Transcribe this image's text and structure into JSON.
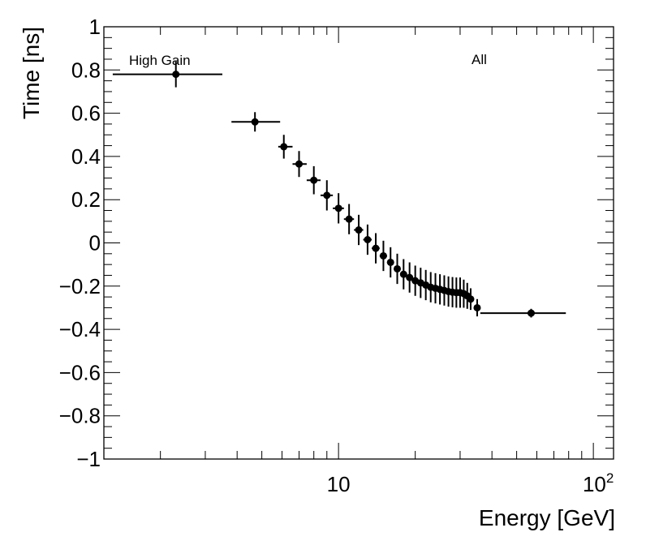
{
  "chart_data": {
    "type": "scatter",
    "xlabel": "Energy [GeV]",
    "ylabel": "Time [ns]",
    "xscale": "log",
    "xlim": [
      1.2,
      120
    ],
    "ylim": [
      -1,
      1
    ],
    "grid": false,
    "annotations": {
      "left": "High Gain",
      "right": "All"
    },
    "x_major_tick_labels": [
      {
        "value": 10,
        "label": "10"
      },
      {
        "value": 100,
        "label": "10",
        "sup": "2"
      }
    ],
    "y_tick_labels": [
      {
        "value": 1,
        "label": "1"
      },
      {
        "value": 0.8,
        "label": "0.8"
      },
      {
        "value": 0.6,
        "label": "0.6"
      },
      {
        "value": 0.4,
        "label": "0.4"
      },
      {
        "value": 0.2,
        "label": "0.2"
      },
      {
        "value": 0,
        "label": "0"
      },
      {
        "value": -0.2,
        "label": "−0.2"
      },
      {
        "value": -0.4,
        "label": "−0.4"
      },
      {
        "value": -0.6,
        "label": "−0.6"
      },
      {
        "value": -0.8,
        "label": "−0.8"
      },
      {
        "value": -1,
        "label": "−1"
      }
    ],
    "series": [
      {
        "name": "All",
        "points": [
          {
            "x": 2.3,
            "y": 0.78,
            "xlo": 1.3,
            "xhi": 3.5,
            "yerr": 0.06
          },
          {
            "x": 4.7,
            "y": 0.56,
            "xlo": 3.8,
            "xhi": 5.9,
            "yerr": 0.045
          },
          {
            "x": 6.1,
            "y": 0.445,
            "xlo": 5.8,
            "xhi": 6.6,
            "yerr": 0.055
          },
          {
            "x": 7.0,
            "y": 0.365,
            "xlo": 6.6,
            "xhi": 7.5,
            "yerr": 0.06
          },
          {
            "x": 8.0,
            "y": 0.29,
            "xlo": 7.5,
            "xhi": 8.5,
            "yerr": 0.065
          },
          {
            "x": 9.0,
            "y": 0.22,
            "xlo": 8.5,
            "xhi": 9.5,
            "yerr": 0.07
          },
          {
            "x": 10.0,
            "y": 0.16,
            "xlo": 9.5,
            "xhi": 10.5,
            "yerr": 0.07
          },
          {
            "x": 11.0,
            "y": 0.11,
            "xlo": 10.5,
            "xhi": 11.5,
            "yerr": 0.07
          },
          {
            "x": 12.0,
            "y": 0.06,
            "xlo": 11.5,
            "xhi": 12.5,
            "yerr": 0.07
          },
          {
            "x": 13.0,
            "y": 0.015,
            "xlo": 12.5,
            "xhi": 13.5,
            "yerr": 0.07
          },
          {
            "x": 14.0,
            "y": -0.025,
            "xlo": 13.5,
            "xhi": 14.5,
            "yerr": 0.07
          },
          {
            "x": 15.0,
            "y": -0.06,
            "xlo": 14.5,
            "xhi": 15.5,
            "yerr": 0.07
          },
          {
            "x": 16.0,
            "y": -0.09,
            "xlo": 15.5,
            "xhi": 16.5,
            "yerr": 0.07
          },
          {
            "x": 17.0,
            "y": -0.12,
            "xlo": 16.5,
            "xhi": 17.5,
            "yerr": 0.07
          },
          {
            "x": 18.0,
            "y": -0.145,
            "xlo": 17.5,
            "xhi": 18.5,
            "yerr": 0.07
          },
          {
            "x": 19.0,
            "y": -0.16,
            "xlo": 18.5,
            "xhi": 19.5,
            "yerr": 0.07
          },
          {
            "x": 20.0,
            "y": -0.175,
            "xlo": 19.5,
            "xhi": 20.5,
            "yerr": 0.07
          },
          {
            "x": 21.0,
            "y": -0.185,
            "xlo": 20.5,
            "xhi": 21.5,
            "yerr": 0.07
          },
          {
            "x": 22.0,
            "y": -0.195,
            "xlo": 21.5,
            "xhi": 22.5,
            "yerr": 0.07
          },
          {
            "x": 23.0,
            "y": -0.205,
            "xlo": 22.5,
            "xhi": 23.5,
            "yerr": 0.07
          },
          {
            "x": 24.0,
            "y": -0.21,
            "xlo": 23.5,
            "xhi": 24.5,
            "yerr": 0.07
          },
          {
            "x": 25.0,
            "y": -0.215,
            "xlo": 24.5,
            "xhi": 25.5,
            "yerr": 0.07
          },
          {
            "x": 26.0,
            "y": -0.22,
            "xlo": 25.5,
            "xhi": 26.5,
            "yerr": 0.07
          },
          {
            "x": 27.0,
            "y": -0.225,
            "xlo": 26.5,
            "xhi": 27.5,
            "yerr": 0.07
          },
          {
            "x": 28.0,
            "y": -0.228,
            "xlo": 27.5,
            "xhi": 28.5,
            "yerr": 0.07
          },
          {
            "x": 29.0,
            "y": -0.23,
            "xlo": 28.5,
            "xhi": 29.5,
            "yerr": 0.07
          },
          {
            "x": 30.0,
            "y": -0.23,
            "xlo": 29.5,
            "xhi": 30.5,
            "yerr": 0.07
          },
          {
            "x": 31.0,
            "y": -0.235,
            "xlo": 30.5,
            "xhi": 31.5,
            "yerr": 0.065
          },
          {
            "x": 32.0,
            "y": -0.245,
            "xlo": 31.5,
            "xhi": 32.5,
            "yerr": 0.06
          },
          {
            "x": 33.0,
            "y": -0.26,
            "xlo": 32.5,
            "xhi": 33.5,
            "yerr": 0.05
          },
          {
            "x": 35.0,
            "y": -0.3,
            "xlo": 34.0,
            "xhi": 36.0,
            "yerr": 0.04
          },
          {
            "x": 57.0,
            "y": -0.325,
            "xlo": 36.0,
            "xhi": 78.0,
            "yerr": 0.02
          }
        ]
      }
    ]
  }
}
